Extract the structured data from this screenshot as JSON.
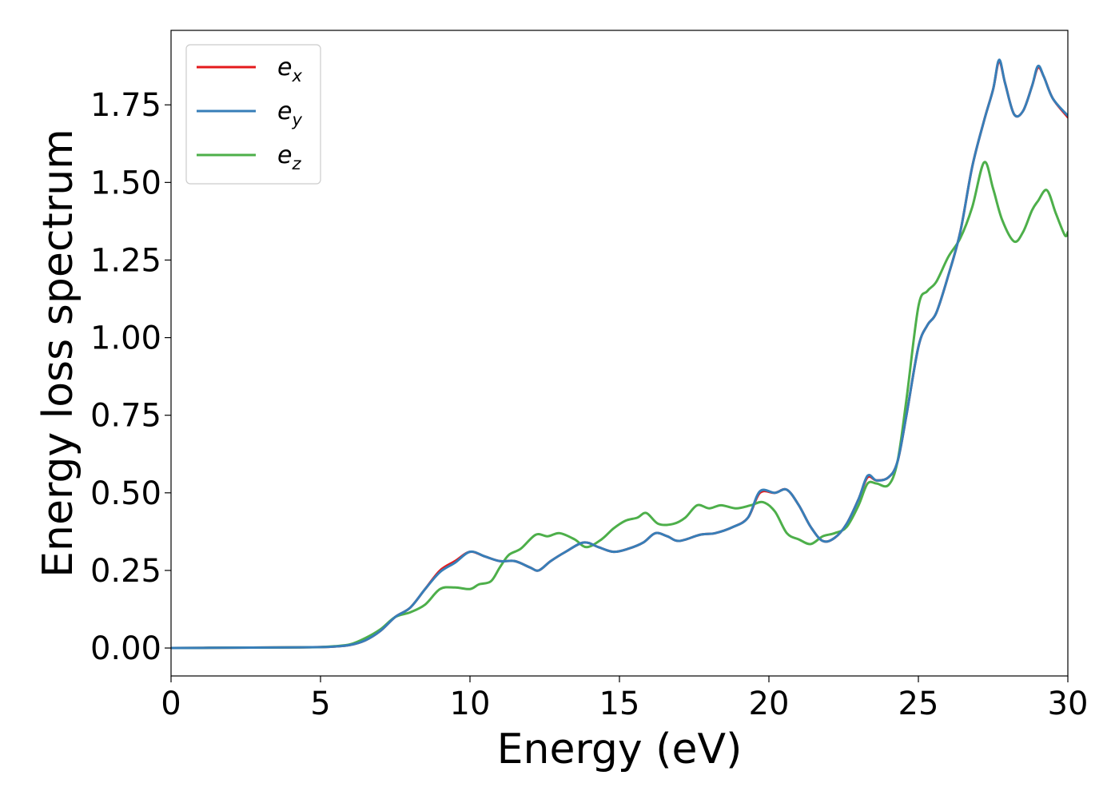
{
  "chart_data": {
    "type": "line",
    "title": "",
    "xlabel": "Energy (eV)",
    "ylabel": "Energy loss spectrum",
    "xlim": [
      0,
      30
    ],
    "ylim": [
      -0.09,
      1.99
    ],
    "xticks": [
      0,
      5,
      10,
      15,
      20,
      25,
      30
    ],
    "xtick_labels": [
      "0",
      "5",
      "10",
      "15",
      "20",
      "25",
      "30"
    ],
    "yticks": [
      0.0,
      0.25,
      0.5,
      0.75,
      1.0,
      1.25,
      1.5,
      1.75
    ],
    "ytick_labels": [
      "0.00",
      "0.25",
      "0.50",
      "0.75",
      "1.00",
      "1.25",
      "1.50",
      "1.75"
    ],
    "grid": false,
    "legend_position": "top-left",
    "series": [
      {
        "name": "e",
        "subscript": "x",
        "color": "#e41a1c",
        "points": [
          [
            0,
            0.0
          ],
          [
            2,
            0.001
          ],
          [
            4,
            0.002
          ],
          [
            5,
            0.003
          ],
          [
            5.5,
            0.005
          ],
          [
            6,
            0.01
          ],
          [
            6.5,
            0.025
          ],
          [
            7,
            0.055
          ],
          [
            7.5,
            0.1
          ],
          [
            8,
            0.13
          ],
          [
            8.5,
            0.19
          ],
          [
            9,
            0.25
          ],
          [
            9.5,
            0.28
          ],
          [
            10,
            0.31
          ],
          [
            10.5,
            0.295
          ],
          [
            11,
            0.28
          ],
          [
            11.5,
            0.28
          ],
          [
            12,
            0.26
          ],
          [
            12.3,
            0.25
          ],
          [
            12.7,
            0.28
          ],
          [
            13.2,
            0.31
          ],
          [
            13.8,
            0.34
          ],
          [
            14.3,
            0.325
          ],
          [
            14.8,
            0.31
          ],
          [
            15.3,
            0.32
          ],
          [
            15.8,
            0.34
          ],
          [
            16.2,
            0.37
          ],
          [
            16.6,
            0.36
          ],
          [
            17,
            0.345
          ],
          [
            17.7,
            0.365
          ],
          [
            18.2,
            0.37
          ],
          [
            18.8,
            0.39
          ],
          [
            19.3,
            0.42
          ],
          [
            19.7,
            0.5
          ],
          [
            20.2,
            0.5
          ],
          [
            20.6,
            0.51
          ],
          [
            21,
            0.46
          ],
          [
            21.4,
            0.39
          ],
          [
            21.8,
            0.345
          ],
          [
            22.2,
            0.355
          ],
          [
            22.6,
            0.4
          ],
          [
            23,
            0.48
          ],
          [
            23.3,
            0.55
          ],
          [
            23.6,
            0.54
          ],
          [
            24,
            0.55
          ],
          [
            24.3,
            0.6
          ],
          [
            24.6,
            0.75
          ],
          [
            25,
            0.97
          ],
          [
            25.3,
            1.04
          ],
          [
            25.6,
            1.08
          ],
          [
            26,
            1.2
          ],
          [
            26.4,
            1.34
          ],
          [
            26.8,
            1.55
          ],
          [
            27.2,
            1.7
          ],
          [
            27.5,
            1.8
          ],
          [
            27.7,
            1.89
          ],
          [
            27.9,
            1.82
          ],
          [
            28.2,
            1.72
          ],
          [
            28.5,
            1.73
          ],
          [
            28.8,
            1.81
          ],
          [
            29,
            1.87
          ],
          [
            29.2,
            1.84
          ],
          [
            29.5,
            1.77
          ],
          [
            30,
            1.71
          ]
        ]
      },
      {
        "name": "e",
        "subscript": "y",
        "color": "#377eb8",
        "points": [
          [
            0,
            0.0
          ],
          [
            2,
            0.001
          ],
          [
            4,
            0.002
          ],
          [
            5,
            0.003
          ],
          [
            5.5,
            0.005
          ],
          [
            6,
            0.01
          ],
          [
            6.5,
            0.025
          ],
          [
            7,
            0.055
          ],
          [
            7.5,
            0.1
          ],
          [
            8,
            0.13
          ],
          [
            8.5,
            0.19
          ],
          [
            9,
            0.245
          ],
          [
            9.5,
            0.275
          ],
          [
            10,
            0.31
          ],
          [
            10.5,
            0.295
          ],
          [
            11,
            0.28
          ],
          [
            11.5,
            0.28
          ],
          [
            12,
            0.26
          ],
          [
            12.3,
            0.25
          ],
          [
            12.7,
            0.28
          ],
          [
            13.2,
            0.31
          ],
          [
            13.8,
            0.34
          ],
          [
            14.3,
            0.325
          ],
          [
            14.8,
            0.31
          ],
          [
            15.3,
            0.32
          ],
          [
            15.8,
            0.34
          ],
          [
            16.2,
            0.37
          ],
          [
            16.6,
            0.36
          ],
          [
            17,
            0.345
          ],
          [
            17.7,
            0.365
          ],
          [
            18.2,
            0.37
          ],
          [
            18.8,
            0.39
          ],
          [
            19.3,
            0.42
          ],
          [
            19.7,
            0.505
          ],
          [
            20.2,
            0.5
          ],
          [
            20.6,
            0.51
          ],
          [
            21,
            0.46
          ],
          [
            21.4,
            0.39
          ],
          [
            21.8,
            0.345
          ],
          [
            22.2,
            0.355
          ],
          [
            22.6,
            0.4
          ],
          [
            23,
            0.48
          ],
          [
            23.3,
            0.555
          ],
          [
            23.6,
            0.54
          ],
          [
            24,
            0.55
          ],
          [
            24.3,
            0.6
          ],
          [
            24.6,
            0.75
          ],
          [
            25,
            0.97
          ],
          [
            25.3,
            1.04
          ],
          [
            25.6,
            1.08
          ],
          [
            26,
            1.2
          ],
          [
            26.4,
            1.34
          ],
          [
            26.8,
            1.55
          ],
          [
            27.2,
            1.7
          ],
          [
            27.5,
            1.8
          ],
          [
            27.7,
            1.895
          ],
          [
            27.9,
            1.82
          ],
          [
            28.2,
            1.72
          ],
          [
            28.5,
            1.73
          ],
          [
            28.8,
            1.81
          ],
          [
            29,
            1.875
          ],
          [
            29.2,
            1.84
          ],
          [
            29.5,
            1.77
          ],
          [
            30,
            1.715
          ]
        ]
      },
      {
        "name": "e",
        "subscript": "z",
        "color": "#4daf4a",
        "points": [
          [
            0,
            0.0
          ],
          [
            2,
            0.001
          ],
          [
            4,
            0.002
          ],
          [
            5,
            0.003
          ],
          [
            5.5,
            0.006
          ],
          [
            6,
            0.012
          ],
          [
            6.5,
            0.032
          ],
          [
            7,
            0.06
          ],
          [
            7.5,
            0.1
          ],
          [
            8,
            0.115
          ],
          [
            8.5,
            0.14
          ],
          [
            9,
            0.19
          ],
          [
            9.5,
            0.195
          ],
          [
            10,
            0.19
          ],
          [
            10.3,
            0.205
          ],
          [
            10.7,
            0.215
          ],
          [
            11,
            0.26
          ],
          [
            11.3,
            0.3
          ],
          [
            11.7,
            0.32
          ],
          [
            12.2,
            0.365
          ],
          [
            12.6,
            0.36
          ],
          [
            13,
            0.37
          ],
          [
            13.5,
            0.35
          ],
          [
            13.9,
            0.325
          ],
          [
            14.4,
            0.35
          ],
          [
            14.8,
            0.385
          ],
          [
            15.2,
            0.41
          ],
          [
            15.6,
            0.42
          ],
          [
            15.9,
            0.435
          ],
          [
            16.3,
            0.4
          ],
          [
            16.8,
            0.4
          ],
          [
            17.2,
            0.42
          ],
          [
            17.6,
            0.46
          ],
          [
            18,
            0.45
          ],
          [
            18.4,
            0.46
          ],
          [
            18.9,
            0.45
          ],
          [
            19.4,
            0.46
          ],
          [
            19.8,
            0.47
          ],
          [
            20.2,
            0.44
          ],
          [
            20.6,
            0.37
          ],
          [
            21,
            0.35
          ],
          [
            21.4,
            0.335
          ],
          [
            21.8,
            0.36
          ],
          [
            22.2,
            0.37
          ],
          [
            22.6,
            0.39
          ],
          [
            23,
            0.46
          ],
          [
            23.3,
            0.53
          ],
          [
            23.6,
            0.53
          ],
          [
            24,
            0.525
          ],
          [
            24.3,
            0.6
          ],
          [
            24.6,
            0.8
          ],
          [
            25,
            1.1
          ],
          [
            25.3,
            1.15
          ],
          [
            25.6,
            1.18
          ],
          [
            26,
            1.26
          ],
          [
            26.4,
            1.32
          ],
          [
            26.8,
            1.42
          ],
          [
            27.2,
            1.565
          ],
          [
            27.5,
            1.48
          ],
          [
            27.8,
            1.38
          ],
          [
            28.2,
            1.31
          ],
          [
            28.5,
            1.34
          ],
          [
            28.8,
            1.41
          ],
          [
            29,
            1.44
          ],
          [
            29.3,
            1.475
          ],
          [
            29.6,
            1.4
          ],
          [
            29.9,
            1.33
          ],
          [
            30,
            1.34
          ]
        ]
      }
    ]
  }
}
